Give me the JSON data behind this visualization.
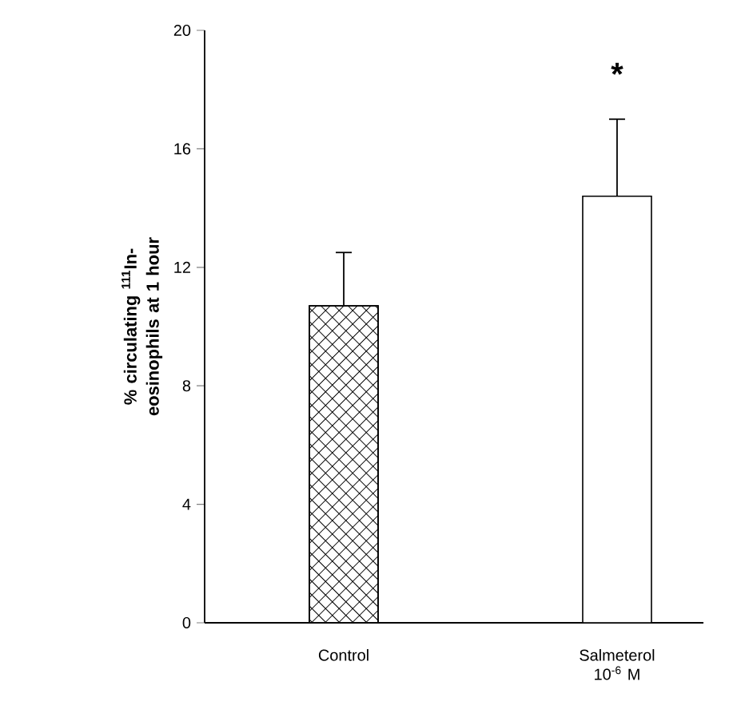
{
  "chart_data": {
    "type": "bar",
    "ylabel": "% circulating $^{111}$In-eosinophils at 1 hour",
    "categories": [
      "Control",
      "Salmeterol 10$^{-6}$ M"
    ],
    "values": [
      10.7,
      14.4
    ],
    "errors": [
      1.8,
      2.6
    ],
    "colors": [
      "#000000",
      "#ffffff"
    ],
    "ylim": [
      0,
      20
    ],
    "yticks": [
      0,
      4,
      8,
      12,
      16,
      20
    ],
    "annotations": [
      "*"
    ]
  }
}
